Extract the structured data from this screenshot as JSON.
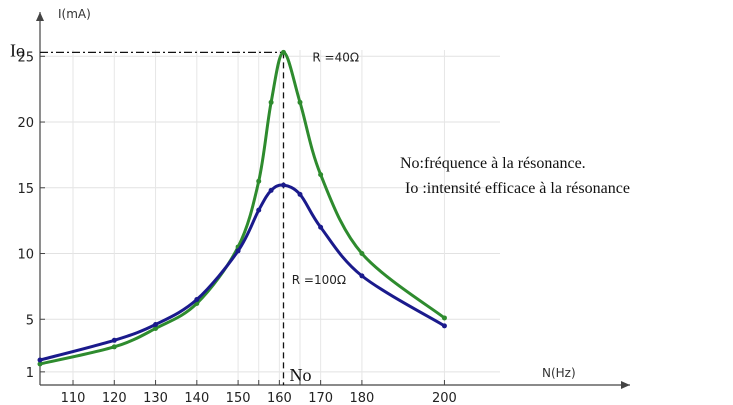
{
  "chart_data": {
    "type": "line",
    "title": "",
    "xlabel": "N(Hz)",
    "ylabel": "I(mA)",
    "xlim": [
      102,
      228
    ],
    "ylim": [
      0,
      27
    ],
    "x_ticks": [
      110,
      120,
      130,
      140,
      150,
      155,
      160,
      165,
      170,
      180,
      200
    ],
    "x_tick_labels": [
      "110",
      "120",
      "130",
      "140",
      "150",
      "",
      "160",
      "",
      "170",
      "180",
      "200"
    ],
    "y_ticks": [
      1,
      5,
      10,
      15,
      20,
      25
    ],
    "y_tick_labels": [
      "1",
      "5",
      "10",
      "15",
      "20",
      "25"
    ],
    "grid": true,
    "series": [
      {
        "name": "R =40Ω",
        "color": "#2e8b2e",
        "x": [
          102,
          120,
          130,
          140,
          150,
          155,
          158,
          161,
          165,
          170,
          180,
          200
        ],
        "y": [
          1.6,
          2.9,
          4.3,
          6.2,
          10.5,
          15.5,
          21.5,
          25.3,
          21.5,
          16.0,
          10.0,
          5.1
        ]
      },
      {
        "name": "R =100Ω",
        "color": "#1a1a8c",
        "x": [
          102,
          120,
          130,
          140,
          150,
          155,
          158,
          161,
          165,
          170,
          180,
          200
        ],
        "y": [
          1.9,
          3.4,
          4.6,
          6.5,
          10.2,
          13.3,
          14.8,
          15.2,
          14.5,
          12.0,
          8.3,
          4.5
        ]
      }
    ],
    "resonance": {
      "x": 161,
      "y": 25.3,
      "x_label": "No",
      "y_label": "Io"
    },
    "annotations": [
      "No:fréquence à la résonance.",
      "Io :intensité efficace à la résonance"
    ]
  }
}
